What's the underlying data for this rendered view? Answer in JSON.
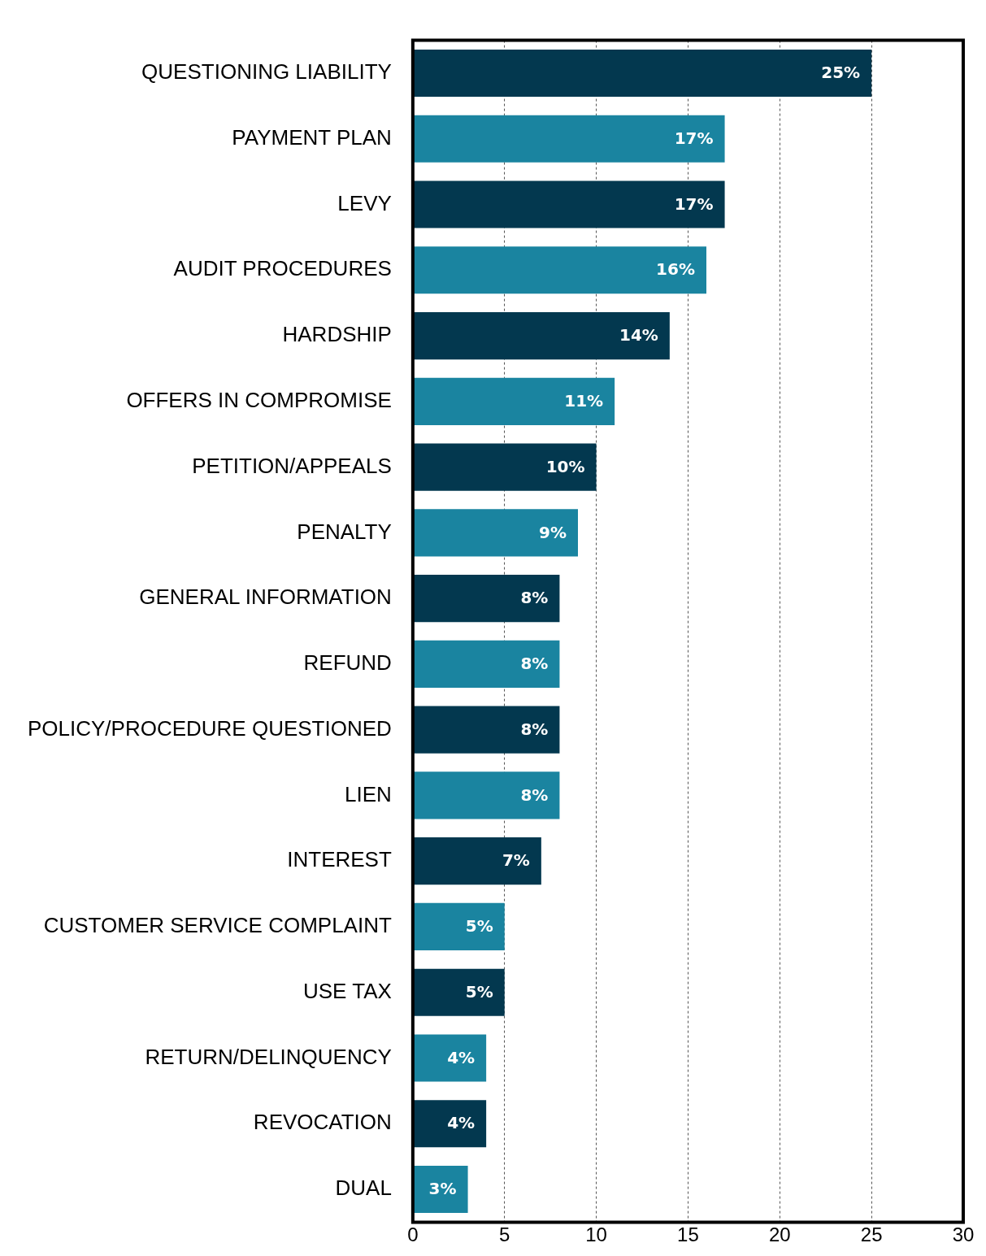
{
  "chart_data": {
    "type": "bar",
    "orientation": "horizontal",
    "categories": [
      "QUESTIONING LIABILITY",
      "PAYMENT PLAN",
      "LEVY",
      "AUDIT PROCEDURES",
      "HARDSHIP",
      "OFFERS IN COMPROMISE",
      "PETITION/APPEALS",
      "PENALTY",
      "GENERAL INFORMATION",
      "REFUND",
      "POLICY/PROCEDURE QUESTIONED",
      "LIEN",
      "INTEREST",
      "CUSTOMER SERVICE COMPLAINT",
      "USE TAX",
      "RETURN/DELINQUENCY",
      "REVOCATION",
      "DUAL"
    ],
    "values": [
      25,
      17,
      17,
      16,
      14,
      11,
      10,
      9,
      8,
      8,
      8,
      8,
      7,
      5,
      5,
      4,
      4,
      3
    ],
    "value_labels": [
      "25%",
      "17%",
      "17%",
      "16%",
      "14%",
      "11%",
      "10%",
      "9%",
      "8%",
      "8%",
      "8%",
      "8%",
      "7%",
      "5%",
      "5%",
      "4%",
      "4%",
      "3%"
    ],
    "colors": [
      "#03384f",
      "#1a84a0",
      "#03384f",
      "#1a84a0",
      "#03384f",
      "#1a84a0",
      "#03384f",
      "#1a84a0",
      "#03384f",
      "#1a84a0",
      "#03384f",
      "#1a84a0",
      "#03384f",
      "#1a84a0",
      "#03384f",
      "#1a84a0",
      "#03384f",
      "#1a84a0"
    ],
    "xlim": [
      0,
      30
    ],
    "xticks": [
      0,
      5,
      10,
      15,
      20,
      25,
      30
    ],
    "grid": "x",
    "legend": false
  }
}
